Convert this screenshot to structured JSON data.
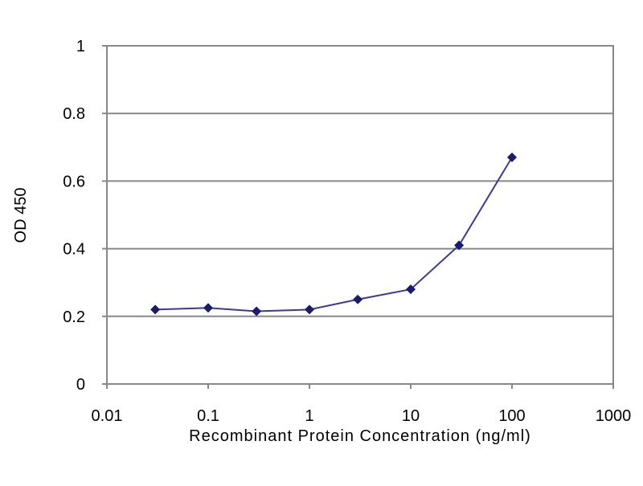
{
  "chart_data": {
    "type": "line",
    "title": "",
    "xlabel": "Recombinant Protein Concentration (ng/ml)",
    "ylabel": "OD 450",
    "x_scale": "log",
    "xlim": [
      0.01,
      1000
    ],
    "ylim": [
      0,
      1
    ],
    "x_ticks": [
      "0.01",
      "0.1",
      "1",
      "10",
      "100",
      "1000"
    ],
    "y_ticks": [
      "0",
      "0.2",
      "0.4",
      "0.6",
      "0.8",
      "1"
    ],
    "grid": "horizontal",
    "legend": "none",
    "series": [
      {
        "color": "#1a1a6e",
        "marker": "diamond",
        "x": [
          0.03,
          0.1,
          0.3,
          1,
          3,
          10,
          30,
          100
        ],
        "y": [
          0.22,
          0.225,
          0.215,
          0.22,
          0.25,
          0.28,
          0.41,
          0.67
        ]
      }
    ]
  }
}
